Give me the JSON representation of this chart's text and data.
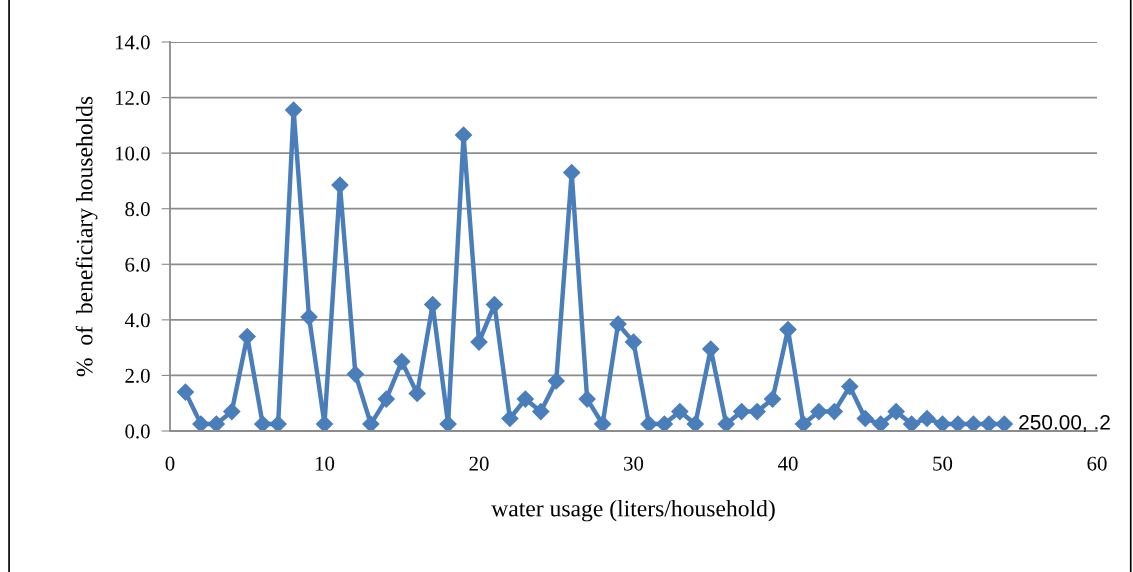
{
  "chart_data": {
    "type": "line",
    "xlabel": "water usage (liters/household)",
    "ylabel": "%  of  beneficiary households",
    "x": [
      1,
      2,
      3,
      4,
      5,
      6,
      7,
      8,
      9,
      10,
      11,
      12,
      13,
      14,
      15,
      16,
      17,
      18,
      19,
      20,
      21,
      22,
      23,
      24,
      25,
      26,
      27,
      28,
      29,
      30,
      31,
      32,
      33,
      34,
      35,
      36,
      37,
      38,
      39,
      40,
      41,
      42,
      43,
      44,
      45,
      46,
      47,
      48,
      49,
      50,
      51,
      52,
      53,
      54
    ],
    "series": [
      {
        "color": "#4a7ebb",
        "values": [
          1.4,
          0.25,
          0.25,
          0.7,
          3.4,
          0.25,
          0.25,
          11.55,
          4.1,
          0.25,
          8.85,
          2.05,
          0.25,
          1.15,
          2.5,
          1.35,
          4.55,
          0.25,
          10.65,
          3.2,
          4.55,
          0.45,
          1.15,
          0.7,
          1.8,
          9.3,
          1.15,
          0.25,
          3.85,
          3.2,
          0.25,
          0.25,
          0.7,
          0.25,
          2.95,
          0.25,
          0.7,
          0.7,
          1.15,
          3.65,
          0.25,
          0.7,
          0.7,
          1.6,
          0.45,
          0.25,
          0.7,
          0.25,
          0.45,
          0.25,
          0.25,
          0.25,
          0.25,
          0.25
        ]
      }
    ],
    "xlim": [
      0,
      60
    ],
    "xticks": [
      0,
      10,
      20,
      30,
      40,
      50,
      60
    ],
    "ylim": [
      0,
      14
    ],
    "yticks": [
      {
        "value": 0,
        "label": "0.0"
      },
      {
        "value": 2,
        "label": "2.0"
      },
      {
        "value": 4,
        "label": "4.0"
      },
      {
        "value": 6,
        "label": "6.0"
      },
      {
        "value": 8,
        "label": "8.0"
      },
      {
        "value": 10,
        "label": "10.0"
      },
      {
        "value": 12,
        "label": "12.0"
      },
      {
        "value": 14,
        "label": "14.0"
      }
    ],
    "grid": "y",
    "marker": "diamond",
    "line_style": "solid",
    "annotations": [
      {
        "text": "250.00, .2",
        "x": 54,
        "y": 0.25
      }
    ]
  }
}
